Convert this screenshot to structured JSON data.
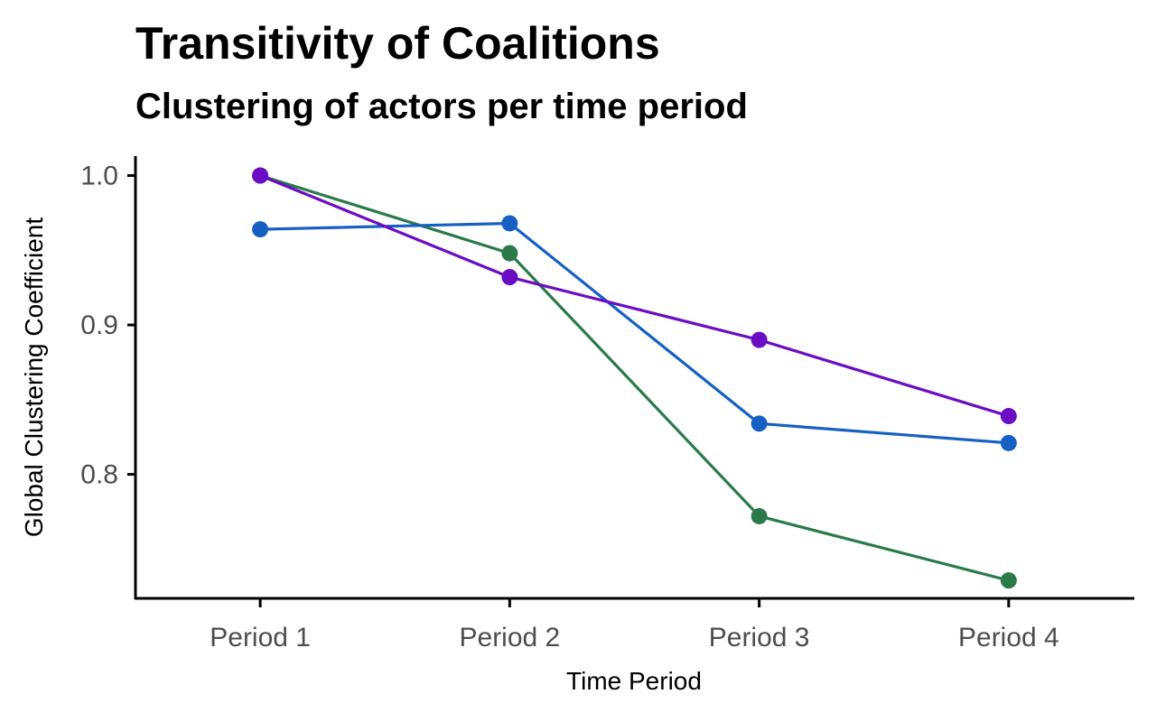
{
  "chart_data": {
    "type": "line",
    "title": "Transitivity of Coalitions",
    "subtitle": "Clustering of actors per time period",
    "xlabel": "Time Period",
    "ylabel": "Global Clustering Coefficient",
    "categories": [
      "Period 1",
      "Period 2",
      "Period 3",
      "Period 4"
    ],
    "y_ticks": [
      0.8,
      0.9,
      1.0
    ],
    "y_tick_labels": [
      "0.8",
      "0.9",
      "1.0"
    ],
    "ylim": [
      0.717,
      1.013
    ],
    "grid": false,
    "legend": "none",
    "series": [
      {
        "color": "#2a7a4a",
        "values": [
          1.0,
          0.948,
          0.772,
          0.729
        ]
      },
      {
        "color": "#1660c4",
        "values": [
          0.964,
          0.968,
          0.834,
          0.821
        ]
      },
      {
        "color": "#6a0dc4",
        "values": [
          1.0,
          0.932,
          0.89,
          0.839
        ]
      }
    ]
  }
}
